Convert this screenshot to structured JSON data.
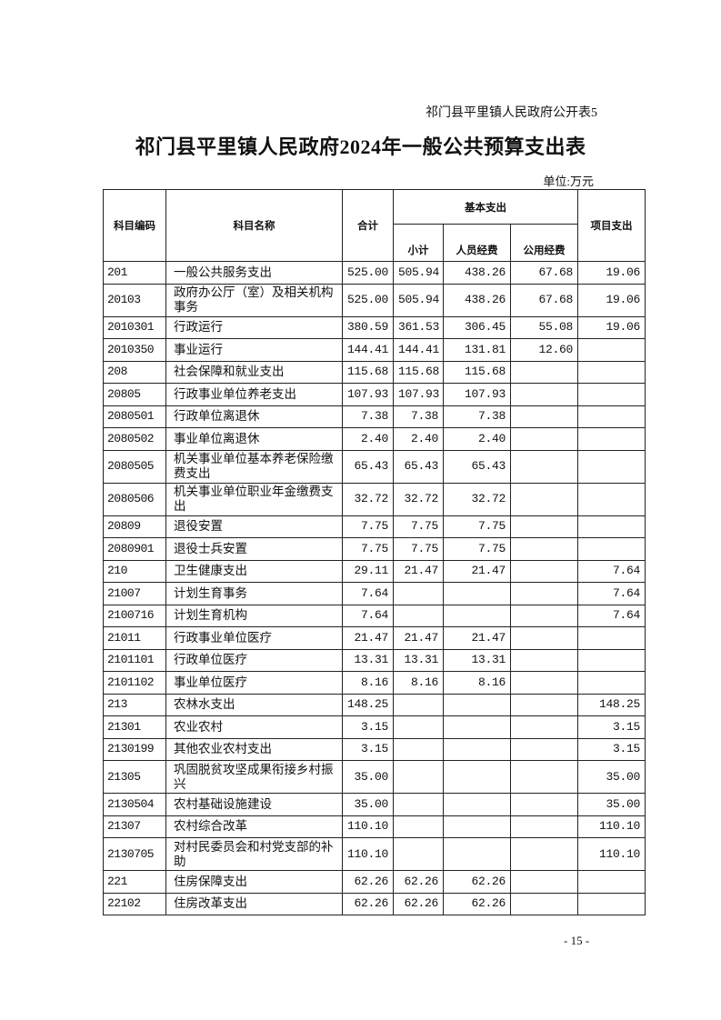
{
  "doc_label": "祁门县平里镇人民政府公开表5",
  "title": "祁门县平里镇人民政府2024年一般公共预算支出表",
  "unit": "单位:万元",
  "headers": {
    "code": "科目编码",
    "name": "科目名称",
    "total": "合计",
    "basic": "基本支出",
    "subtotal": "小计",
    "personnel": "人员经费",
    "public": "公用经费",
    "project": "项目支出"
  },
  "rows": [
    {
      "code": "201",
      "name": "一般公共服务支出",
      "total": "525.00",
      "subtotal": "505.94",
      "personnel": "438.26",
      "public": "67.68",
      "project": "19.06"
    },
    {
      "code": "20103",
      "name": "政府办公厅（室）及相关机构事务",
      "total": "525.00",
      "subtotal": "505.94",
      "personnel": "438.26",
      "public": "67.68",
      "project": "19.06"
    },
    {
      "code": "2010301",
      "name": "行政运行",
      "total": "380.59",
      "subtotal": "361.53",
      "personnel": "306.45",
      "public": "55.08",
      "project": "19.06"
    },
    {
      "code": "2010350",
      "name": "事业运行",
      "total": "144.41",
      "subtotal": "144.41",
      "personnel": "131.81",
      "public": "12.60",
      "project": ""
    },
    {
      "code": "208",
      "name": "社会保障和就业支出",
      "total": "115.68",
      "subtotal": "115.68",
      "personnel": "115.68",
      "public": "",
      "project": ""
    },
    {
      "code": "20805",
      "name": "行政事业单位养老支出",
      "total": "107.93",
      "subtotal": "107.93",
      "personnel": "107.93",
      "public": "",
      "project": ""
    },
    {
      "code": "2080501",
      "name": "行政单位离退休",
      "total": "7.38",
      "subtotal": "7.38",
      "personnel": "7.38",
      "public": "",
      "project": ""
    },
    {
      "code": "2080502",
      "name": "事业单位离退休",
      "total": "2.40",
      "subtotal": "2.40",
      "personnel": "2.40",
      "public": "",
      "project": ""
    },
    {
      "code": "2080505",
      "name": "机关事业单位基本养老保险缴费支出",
      "total": "65.43",
      "subtotal": "65.43",
      "personnel": "65.43",
      "public": "",
      "project": ""
    },
    {
      "code": "2080506",
      "name": "机关事业单位职业年金缴费支出",
      "total": "32.72",
      "subtotal": "32.72",
      "personnel": "32.72",
      "public": "",
      "project": ""
    },
    {
      "code": "20809",
      "name": "退役安置",
      "total": "7.75",
      "subtotal": "7.75",
      "personnel": "7.75",
      "public": "",
      "project": ""
    },
    {
      "code": "2080901",
      "name": "退役士兵安置",
      "total": "7.75",
      "subtotal": "7.75",
      "personnel": "7.75",
      "public": "",
      "project": ""
    },
    {
      "code": "210",
      "name": "卫生健康支出",
      "total": "29.11",
      "subtotal": "21.47",
      "personnel": "21.47",
      "public": "",
      "project": "7.64"
    },
    {
      "code": "21007",
      "name": "计划生育事务",
      "total": "7.64",
      "subtotal": "",
      "personnel": "",
      "public": "",
      "project": "7.64"
    },
    {
      "code": "2100716",
      "name": "计划生育机构",
      "total": "7.64",
      "subtotal": "",
      "personnel": "",
      "public": "",
      "project": "7.64"
    },
    {
      "code": "21011",
      "name": "行政事业单位医疗",
      "total": "21.47",
      "subtotal": "21.47",
      "personnel": "21.47",
      "public": "",
      "project": ""
    },
    {
      "code": "2101101",
      "name": "行政单位医疗",
      "total": "13.31",
      "subtotal": "13.31",
      "personnel": "13.31",
      "public": "",
      "project": ""
    },
    {
      "code": "2101102",
      "name": "事业单位医疗",
      "total": "8.16",
      "subtotal": "8.16",
      "personnel": "8.16",
      "public": "",
      "project": ""
    },
    {
      "code": "213",
      "name": "农林水支出",
      "total": "148.25",
      "subtotal": "",
      "personnel": "",
      "public": "",
      "project": "148.25"
    },
    {
      "code": "21301",
      "name": "农业农村",
      "total": "3.15",
      "subtotal": "",
      "personnel": "",
      "public": "",
      "project": "3.15"
    },
    {
      "code": "2130199",
      "name": "其他农业农村支出",
      "total": "3.15",
      "subtotal": "",
      "personnel": "",
      "public": "",
      "project": "3.15"
    },
    {
      "code": "21305",
      "name": "巩固脱贫攻坚成果衔接乡村振兴",
      "total": "35.00",
      "subtotal": "",
      "personnel": "",
      "public": "",
      "project": "35.00"
    },
    {
      "code": "2130504",
      "name": "农村基础设施建设",
      "total": "35.00",
      "subtotal": "",
      "personnel": "",
      "public": "",
      "project": "35.00"
    },
    {
      "code": "21307",
      "name": "农村综合改革",
      "total": "110.10",
      "subtotal": "",
      "personnel": "",
      "public": "",
      "project": "110.10"
    },
    {
      "code": "2130705",
      "name": "对村民委员会和村党支部的补助",
      "total": "110.10",
      "subtotal": "",
      "personnel": "",
      "public": "",
      "project": "110.10"
    },
    {
      "code": "221",
      "name": "住房保障支出",
      "total": "62.26",
      "subtotal": "62.26",
      "personnel": "62.26",
      "public": "",
      "project": ""
    },
    {
      "code": "22102",
      "name": "住房改革支出",
      "total": "62.26",
      "subtotal": "62.26",
      "personnel": "62.26",
      "public": "",
      "project": ""
    }
  ],
  "page_number": "- 15 -"
}
